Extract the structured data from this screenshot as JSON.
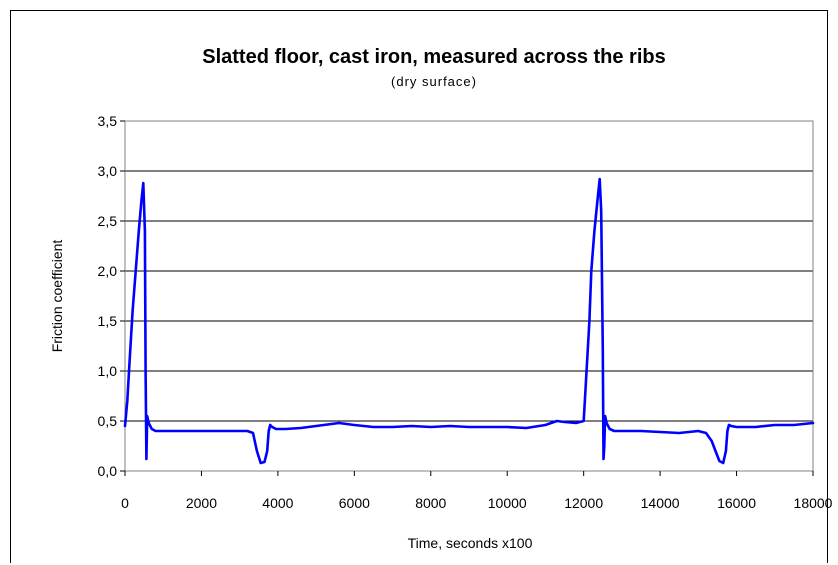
{
  "chart_data": {
    "type": "line",
    "title": "Slatted floor, cast iron, measured across the ribs",
    "subtitle": "(dry surface)",
    "xlabel": "Time,  seconds x100",
    "ylabel": "Friction coefficient",
    "xlim": [
      0,
      18000
    ],
    "ylim": [
      0,
      3.5
    ],
    "x_ticks": [
      "0",
      "2000",
      "4000",
      "6000",
      "8000",
      "10000",
      "12000",
      "14000",
      "16000",
      "18000"
    ],
    "y_ticks": [
      "0,0",
      "0,5",
      "1,0",
      "1,5",
      "2,0",
      "2,5",
      "3,0",
      "3,5"
    ],
    "grid": "horizontal",
    "series": [
      {
        "color": "#0000ff",
        "x": [
          0,
          60,
          120,
          200,
          280,
          360,
          430,
          480,
          520,
          540,
          560,
          580,
          620,
          700,
          800,
          1000,
          1500,
          2000,
          2500,
          3000,
          3200,
          3350,
          3450,
          3550,
          3650,
          3720,
          3760,
          3800,
          3850,
          3950,
          4200,
          4600,
          5000,
          5600,
          6000,
          6500,
          7000,
          7500,
          8000,
          8500,
          9000,
          9500,
          10000,
          10500,
          11000,
          11300,
          11500,
          11800,
          12000,
          12150,
          12200,
          12280,
          12360,
          12420,
          12460,
          12500,
          12520,
          12540,
          12560,
          12600,
          12680,
          12800,
          13000,
          13500,
          14000,
          14500,
          15000,
          15200,
          15350,
          15450,
          15550,
          15650,
          15720,
          15760,
          15800,
          15860,
          16000,
          16500,
          17000,
          17500,
          18000
        ],
        "y": [
          0.45,
          0.7,
          1.1,
          1.6,
          2.0,
          2.4,
          2.7,
          2.88,
          2.4,
          1.0,
          0.12,
          0.55,
          0.48,
          0.42,
          0.4,
          0.4,
          0.4,
          0.4,
          0.4,
          0.4,
          0.4,
          0.38,
          0.2,
          0.08,
          0.09,
          0.2,
          0.4,
          0.46,
          0.44,
          0.42,
          0.42,
          0.43,
          0.45,
          0.48,
          0.46,
          0.44,
          0.44,
          0.45,
          0.44,
          0.45,
          0.44,
          0.44,
          0.44,
          0.43,
          0.46,
          0.5,
          0.49,
          0.48,
          0.5,
          1.5,
          2.0,
          2.4,
          2.7,
          2.92,
          2.6,
          1.2,
          0.12,
          0.25,
          0.55,
          0.48,
          0.42,
          0.4,
          0.4,
          0.4,
          0.39,
          0.38,
          0.4,
          0.38,
          0.3,
          0.2,
          0.1,
          0.08,
          0.2,
          0.4,
          0.46,
          0.45,
          0.44,
          0.44,
          0.46,
          0.46,
          0.48
        ]
      }
    ]
  }
}
